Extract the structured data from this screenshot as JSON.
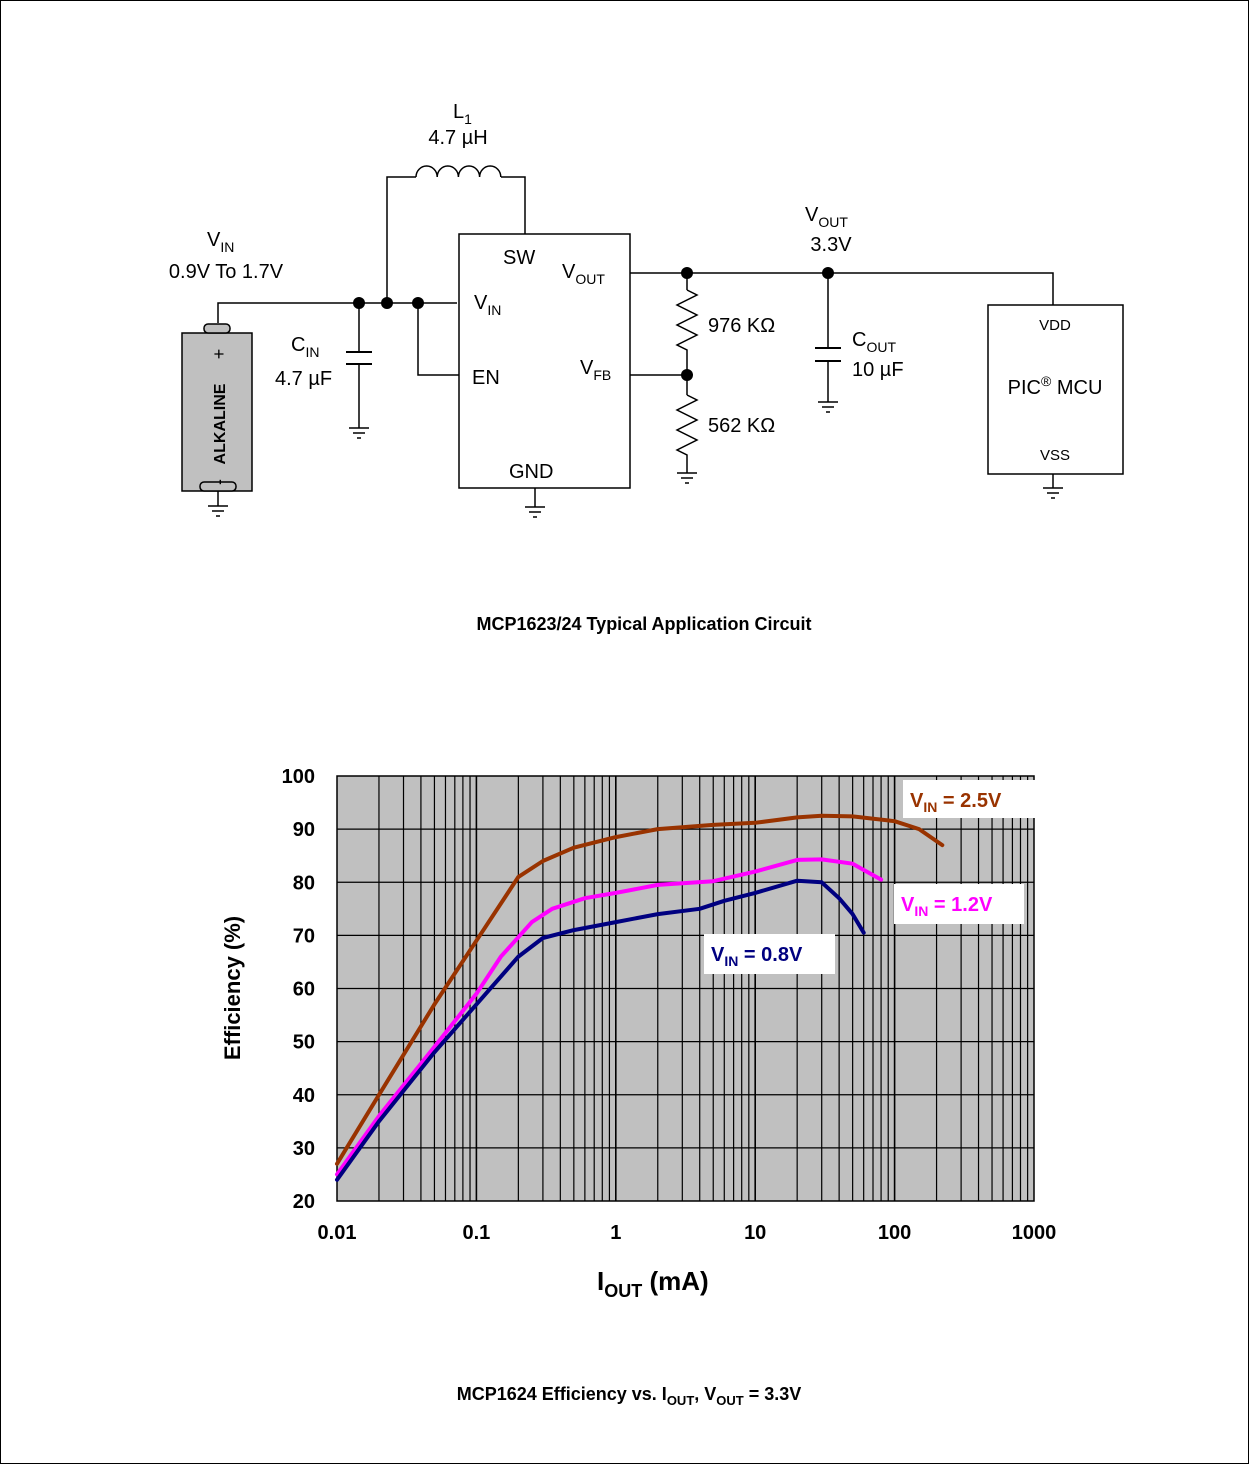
{
  "circuit": {
    "caption": "MCP1623/24 Typical Application Circuit",
    "inductor": {
      "name": "L",
      "sub": "1",
      "value": "4.7 µH"
    },
    "vin": {
      "name": "V",
      "sub": "IN",
      "range": "0.9V To 1.7V"
    },
    "battery": {
      "label": "ALKALINE",
      "plus": "+",
      "minus": "-"
    },
    "cin": {
      "name": "C",
      "sub": "IN",
      "value": "4.7 µF"
    },
    "ic": {
      "sw": "SW",
      "vout_v": "V",
      "vout_sub": "OUT",
      "vin_v": "V",
      "vin_sub": "IN",
      "en": "EN",
      "vfb_v": "V",
      "vfb_sub": "FB",
      "gnd": "GND"
    },
    "r_top": "976 KΩ",
    "r_bot": "562 KΩ",
    "vout": {
      "name": "V",
      "sub": "OUT",
      "value": "3.3V"
    },
    "cout": {
      "name": "C",
      "sub": "OUT",
      "value": "10 µF"
    },
    "mcu": {
      "vdd": "VDD",
      "vss": "VSS",
      "name": "PIC",
      "reg": "®",
      "suffix": " MCU"
    }
  },
  "chart_data": {
    "type": "line",
    "xscale": "log",
    "xlim": [
      0.01,
      1000
    ],
    "ylim": [
      20,
      100
    ],
    "grid": true,
    "xticks": [
      "0.01",
      "0.1",
      "1",
      "10",
      "100",
      "1000"
    ],
    "yticks": [
      "20",
      "30",
      "40",
      "50",
      "60",
      "70",
      "80",
      "90",
      "100"
    ],
    "ylabel": "Efficiency (%)",
    "xlabel_main": "I",
    "xlabel_sub": "OUT",
    "xlabel_unit": " (mA)",
    "caption": {
      "a": "MCP1624 Efficiency vs. I",
      "a_sub": "OUT",
      "b": ", V",
      "b_sub": "OUT",
      "c": " = 3.3V"
    },
    "series": [
      {
        "name_v": "V",
        "name_sub": "IN",
        "name_rest": " = 2.5V",
        "color": "#993300",
        "x": [
          0.01,
          0.02,
          0.05,
          0.1,
          0.2,
          0.3,
          0.5,
          1,
          2,
          5,
          10,
          20,
          30,
          50,
          100,
          150,
          220
        ],
        "y": [
          27,
          40,
          57,
          69,
          81,
          84,
          86.5,
          88.5,
          90,
          90.8,
          91.2,
          92.2,
          92.5,
          92.4,
          91.5,
          90,
          87
        ]
      },
      {
        "name_v": "V",
        "name_sub": "IN",
        "name_rest": " = 1.2V",
        "color": "#ff00ff",
        "x": [
          0.01,
          0.02,
          0.05,
          0.1,
          0.15,
          0.25,
          0.35,
          0.6,
          1,
          2,
          5,
          10,
          20,
          30,
          50,
          80
        ],
        "y": [
          25,
          36,
          49,
          59,
          66,
          72.5,
          75,
          77,
          78,
          79.5,
          80.2,
          82,
          84.2,
          84.3,
          83.5,
          80.5
        ]
      },
      {
        "name_v": "V",
        "name_sub": "IN",
        "name_rest": " = 0.8V",
        "color": "#000080",
        "x": [
          0.01,
          0.02,
          0.05,
          0.1,
          0.2,
          0.3,
          0.5,
          1,
          2,
          4,
          6,
          10,
          20,
          30,
          40,
          50,
          60
        ],
        "y": [
          24,
          35,
          48,
          57,
          66,
          69.5,
          71,
          72.5,
          74,
          75,
          76.5,
          78,
          80.3,
          80,
          77,
          74,
          70.5
        ]
      }
    ]
  }
}
